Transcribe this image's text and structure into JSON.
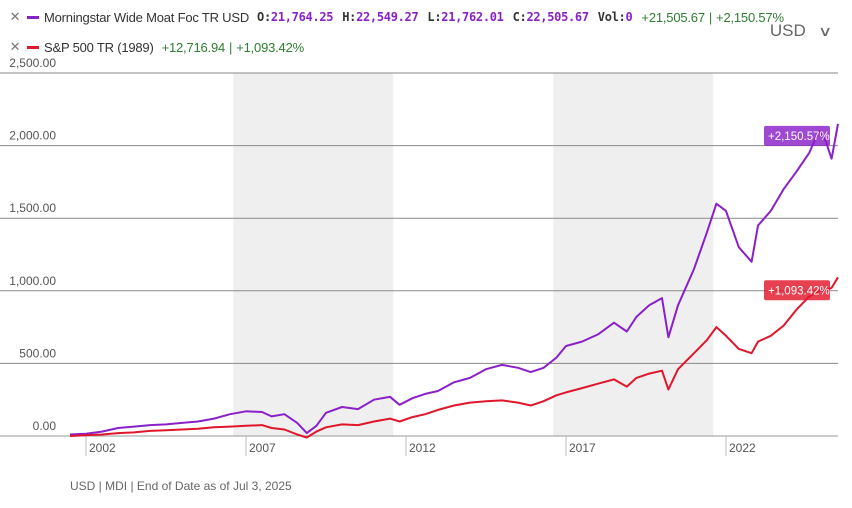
{
  "legend": {
    "series1": {
      "name": "Morningstar Wide Moat Foc TR USD",
      "color": "#8a20c8",
      "open_label": "O:",
      "open": "21,764.25",
      "high_label": "H:",
      "high": "22,549.27",
      "low_label": "L:",
      "low": "21,762.01",
      "close_label": "C:",
      "close": "22,505.67",
      "vol_label": "Vol:",
      "vol": "0",
      "change": "+21,505.67",
      "change_pct": "+2,150.57%"
    },
    "series2": {
      "name": "S&P 500 TR (1989)",
      "color": "#e0162b",
      "change": "+12,716.94",
      "change_pct": "+1,093.42%"
    },
    "separator": "|",
    "close_icon": "close-icon"
  },
  "currency": {
    "label": "USD",
    "icon": "chevron-down-icon"
  },
  "footer": "USD | MDI | End of Date as of Jul 3, 2025",
  "chart_data": {
    "type": "line",
    "title": "",
    "xlabel": "",
    "ylabel": "",
    "x_ticks": [
      "2002",
      "2007",
      "2012",
      "2017",
      "2022"
    ],
    "y_ticks": [
      "0.00",
      "500.00",
      "1,000.00",
      "1,500.00",
      "2,000.00",
      "2,500.00"
    ],
    "ylim": [
      0,
      2500
    ],
    "xlim": [
      2001.5,
      2025.5
    ],
    "grid": true,
    "shaded_periods": [
      [
        2006.6,
        2011.6
      ],
      [
        2016.6,
        2021.6
      ]
    ],
    "series": [
      {
        "name": "Morningstar Wide Moat Foc TR USD",
        "color": "#8a20c8",
        "end_label": "+2,150.57%",
        "x": [
          2001.5,
          2002.0,
          2002.5,
          2003.0,
          2003.5,
          2004.0,
          2004.5,
          2005.0,
          2005.5,
          2006.0,
          2006.5,
          2007.0,
          2007.5,
          2007.8,
          2008.2,
          2008.6,
          2008.9,
          2009.2,
          2009.5,
          2010.0,
          2010.5,
          2011.0,
          2011.5,
          2011.8,
          2012.2,
          2012.6,
          2013.0,
          2013.5,
          2014.0,
          2014.5,
          2015.0,
          2015.5,
          2015.9,
          2016.3,
          2016.7,
          2017.0,
          2017.5,
          2018.0,
          2018.5,
          2018.9,
          2019.2,
          2019.6,
          2020.0,
          2020.2,
          2020.5,
          2021.0,
          2021.4,
          2021.7,
          2022.0,
          2022.4,
          2022.8,
          2023.0,
          2023.4,
          2023.8,
          2024.2,
          2024.6,
          2024.9,
          2025.1,
          2025.3,
          2025.5
        ],
        "y": [
          10,
          15,
          30,
          55,
          65,
          75,
          80,
          90,
          100,
          120,
          150,
          170,
          165,
          135,
          150,
          90,
          20,
          70,
          160,
          200,
          185,
          250,
          270,
          215,
          260,
          290,
          310,
          370,
          400,
          460,
          490,
          470,
          440,
          470,
          540,
          620,
          650,
          700,
          780,
          720,
          820,
          900,
          950,
          680,
          900,
          1150,
          1400,
          1600,
          1550,
          1300,
          1200,
          1450,
          1550,
          1700,
          1820,
          1950,
          2100,
          2040,
          1910,
          2150
        ]
      },
      {
        "name": "S&P 500 TR (1989)",
        "color": "#e0162b",
        "end_label": "+1,093.42%",
        "x": [
          2001.5,
          2002.0,
          2002.5,
          2003.0,
          2003.5,
          2004.0,
          2004.5,
          2005.0,
          2005.5,
          2006.0,
          2006.5,
          2007.0,
          2007.5,
          2007.8,
          2008.2,
          2008.6,
          2008.9,
          2009.2,
          2009.5,
          2010.0,
          2010.5,
          2011.0,
          2011.5,
          2011.8,
          2012.2,
          2012.6,
          2013.0,
          2013.5,
          2014.0,
          2014.5,
          2015.0,
          2015.5,
          2015.9,
          2016.3,
          2016.7,
          2017.0,
          2017.5,
          2018.0,
          2018.5,
          2018.9,
          2019.2,
          2019.6,
          2020.0,
          2020.2,
          2020.5,
          2021.0,
          2021.4,
          2021.7,
          2022.0,
          2022.4,
          2022.8,
          2023.0,
          2023.4,
          2023.8,
          2024.2,
          2024.6,
          2024.9,
          2025.1,
          2025.3,
          2025.5
        ],
        "y": [
          0,
          5,
          10,
          20,
          25,
          35,
          40,
          45,
          50,
          60,
          65,
          70,
          75,
          55,
          45,
          10,
          -10,
          30,
          60,
          80,
          75,
          100,
          120,
          100,
          130,
          150,
          180,
          210,
          230,
          240,
          245,
          230,
          210,
          240,
          280,
          300,
          330,
          360,
          390,
          340,
          400,
          430,
          450,
          320,
          460,
          570,
          660,
          750,
          690,
          600,
          570,
          650,
          690,
          760,
          870,
          960,
          1000,
          1000,
          1020,
          1093
        ]
      }
    ]
  }
}
